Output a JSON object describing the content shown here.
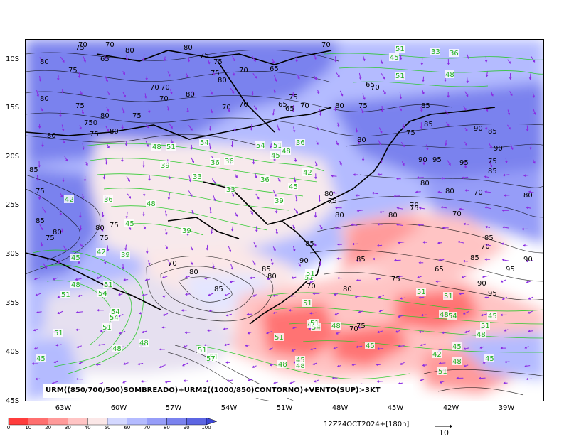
{
  "caption": "URM((850/700/500)SOMBREADO)+URM2((1000/850)CONTORNO)+VENTO(SUP)>3KT",
  "valid_time": "12Z24OCT2024+[180h]",
  "vector_reference": "10",
  "latitude_labels": [
    "10S",
    "15S",
    "20S",
    "25S",
    "30S",
    "35S",
    "40S",
    "45S"
  ],
  "longitude_labels": [
    "63W",
    "60W",
    "57W",
    "54W",
    "51W",
    "48W",
    "45W",
    "42W",
    "39W"
  ],
  "colorbar": {
    "ticks": [
      "0",
      "10",
      "20",
      "30",
      "40",
      "50",
      "60",
      "70",
      "80",
      "90",
      "100"
    ],
    "colors": [
      "#ff3c3c",
      "#ff6f6f",
      "#ff9a9a",
      "#ffc4c4",
      "#fbe7e7",
      "#d4d8ff",
      "#b4bbff",
      "#969df8",
      "#7a82ee",
      "#5c65e2"
    ]
  },
  "humidity_labels": [
    {
      "t": "80"
    },
    {
      "t": "75"
    },
    {
      "t": "80"
    },
    {
      "t": "75"
    },
    {
      "t": "65"
    },
    {
      "t": "80"
    },
    {
      "t": "75"
    },
    {
      "t": "70"
    },
    {
      "t": "70"
    },
    {
      "t": "75"
    },
    {
      "t": "70"
    },
    {
      "t": "65"
    },
    {
      "t": "70"
    },
    {
      "t": "80"
    },
    {
      "t": "75"
    },
    {
      "t": "70"
    },
    {
      "t": "80"
    },
    {
      "t": "75"
    },
    {
      "t": "70"
    },
    {
      "t": "80"
    },
    {
      "t": "75"
    },
    {
      "t": "70"
    },
    {
      "t": "70"
    },
    {
      "t": "65"
    },
    {
      "t": "70"
    },
    {
      "t": "80"
    },
    {
      "t": "75"
    },
    {
      "t": "65"
    },
    {
      "t": "80"
    },
    {
      "t": "75"
    },
    {
      "t": "750"
    },
    {
      "t": "80"
    },
    {
      "t": "85"
    },
    {
      "t": "75"
    },
    {
      "t": "85"
    },
    {
      "t": "80"
    },
    {
      "t": "80"
    },
    {
      "t": "75"
    },
    {
      "t": "75"
    },
    {
      "t": "75"
    },
    {
      "t": "70"
    },
    {
      "t": "80"
    },
    {
      "t": "75"
    },
    {
      "t": "70"
    },
    {
      "t": "65"
    },
    {
      "t": "80"
    },
    {
      "t": "85"
    },
    {
      "t": "75"
    },
    {
      "t": "85"
    },
    {
      "t": "90"
    },
    {
      "t": "85"
    },
    {
      "t": "90"
    },
    {
      "t": "90"
    },
    {
      "t": "95"
    },
    {
      "t": "95"
    },
    {
      "t": "85"
    },
    {
      "t": "75"
    },
    {
      "t": "80"
    },
    {
      "t": "70"
    },
    {
      "t": "80"
    },
    {
      "t": "75"
    },
    {
      "t": "70"
    },
    {
      "t": "85"
    },
    {
      "t": "70"
    },
    {
      "t": "85"
    },
    {
      "t": "90"
    },
    {
      "t": "95"
    },
    {
      "t": "65"
    },
    {
      "t": "85"
    },
    {
      "t": "75"
    },
    {
      "t": "80"
    },
    {
      "t": "70"
    },
    {
      "t": "95"
    },
    {
      "t": "90"
    },
    {
      "t": "70"
    },
    {
      "t": "75"
    },
    {
      "t": "70"
    },
    {
      "t": "80"
    },
    {
      "t": "85"
    },
    {
      "t": "80"
    },
    {
      "t": "85"
    },
    {
      "t": "90"
    },
    {
      "t": "85"
    },
    {
      "t": "80"
    },
    {
      "t": "75"
    },
    {
      "t": "80"
    },
    {
      "t": "80"
    },
    {
      "t": "70"
    },
    {
      "t": "80"
    }
  ],
  "urm2_labels": [
    {
      "t": "45"
    },
    {
      "t": "51"
    },
    {
      "t": "33"
    },
    {
      "t": "36"
    },
    {
      "t": "48"
    },
    {
      "t": "51"
    },
    {
      "t": "54"
    },
    {
      "t": "51"
    },
    {
      "t": "48"
    },
    {
      "t": "39"
    },
    {
      "t": "33"
    },
    {
      "t": "36"
    },
    {
      "t": "36"
    },
    {
      "t": "54"
    },
    {
      "t": "51"
    },
    {
      "t": "48"
    },
    {
      "t": "45"
    },
    {
      "t": "42"
    },
    {
      "t": "45"
    },
    {
      "t": "36"
    },
    {
      "t": "33"
    },
    {
      "t": "39"
    },
    {
      "t": "36"
    },
    {
      "t": "48"
    },
    {
      "t": "45"
    },
    {
      "t": "42"
    },
    {
      "t": "39"
    },
    {
      "t": "36"
    },
    {
      "t": "51"
    },
    {
      "t": "42"
    },
    {
      "t": "39"
    },
    {
      "t": "45"
    },
    {
      "t": "48"
    },
    {
      "t": "51"
    },
    {
      "t": "54"
    },
    {
      "t": "45"
    },
    {
      "t": "51"
    },
    {
      "t": "54"
    },
    {
      "t": "51"
    },
    {
      "t": "48"
    },
    {
      "t": "54"
    },
    {
      "t": "51"
    },
    {
      "t": "51"
    },
    {
      "t": "45"
    },
    {
      "t": "48"
    },
    {
      "t": "45"
    },
    {
      "t": "54"
    },
    {
      "t": "48"
    },
    {
      "t": "51"
    },
    {
      "t": "51"
    },
    {
      "t": "51"
    },
    {
      "t": "57"
    },
    {
      "t": "48"
    },
    {
      "t": "45"
    },
    {
      "t": "54"
    },
    {
      "t": "51"
    },
    {
      "t": "48"
    },
    {
      "t": "42"
    },
    {
      "t": "48"
    },
    {
      "t": "45"
    },
    {
      "t": "51"
    },
    {
      "t": "45"
    },
    {
      "t": "45"
    },
    {
      "t": "48"
    },
    {
      "t": "51"
    },
    {
      "t": "48"
    },
    {
      "t": "51"
    },
    {
      "t": "51"
    },
    {
      "t": "51"
    }
  ]
}
